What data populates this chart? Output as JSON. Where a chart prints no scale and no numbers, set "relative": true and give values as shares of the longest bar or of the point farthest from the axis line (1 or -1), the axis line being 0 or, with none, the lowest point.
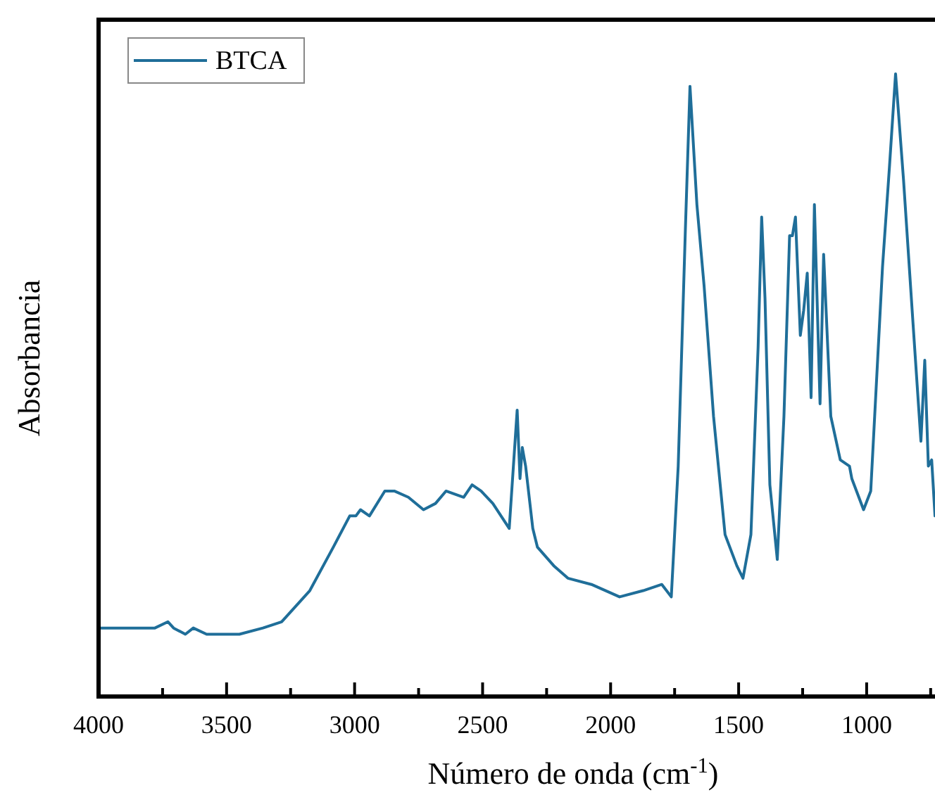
{
  "chart_data": {
    "type": "line",
    "xlabel": "Número de onda (cm$^{-1}$)",
    "ylabel": "Absorbancia",
    "relative": true,
    "legend": "top left",
    "grid": false,
    "marker": "none",
    "line_style": "solid",
    "xlim": [
      4000,
      733
    ],
    "xticks": [
      4000,
      {
        "value": 3750,
        "label": null
      },
      3500,
      {
        "value": 3250,
        "label": null
      },
      3000,
      {
        "value": 2750,
        "label": null
      },
      2500,
      {
        "value": 2250,
        "label": null
      },
      2000,
      {
        "value": 1750,
        "label": null
      },
      1500,
      {
        "value": 1250,
        "label": null
      },
      1000,
      {
        "value": 750,
        "label": null
      }
    ],
    "series": [
      {
        "name": "BTCA",
        "color": "#1f6e99",
        "x": [
          3995,
          3780,
          3729,
          3707,
          3661,
          3630,
          3578,
          3450,
          3358,
          3285,
          3175,
          3083,
          3019,
          2995,
          2977,
          2942,
          2882,
          2845,
          2790,
          2731,
          2684,
          2643,
          2574,
          2541,
          2506,
          2460,
          2396,
          2365,
          2354,
          2345,
          2332,
          2304,
          2286,
          2222,
          2167,
          2075,
          1965,
          1873,
          1800,
          1763,
          1736,
          1708,
          1690,
          1663,
          1635,
          1598,
          1553,
          1507,
          1483,
          1452,
          1424,
          1410,
          1397,
          1378,
          1349,
          1323,
          1301,
          1290,
          1278,
          1259,
          1246,
          1232,
          1217,
          1204,
          1182,
          1168,
          1140,
          1103,
          1067,
          1058,
          1012,
          984,
          938,
          911,
          887,
          856,
          819,
          788,
          773,
          759,
          746,
          733
        ],
        "values": [
          0.11,
          0.11,
          0.12,
          0.11,
          0.1,
          0.11,
          0.1,
          0.1,
          0.11,
          0.12,
          0.17,
          0.24,
          0.29,
          0.29,
          0.3,
          0.29,
          0.33,
          0.33,
          0.32,
          0.3,
          0.31,
          0.33,
          0.32,
          0.34,
          0.33,
          0.31,
          0.27,
          0.46,
          0.35,
          0.4,
          0.37,
          0.27,
          0.24,
          0.21,
          0.19,
          0.18,
          0.16,
          0.17,
          0.18,
          0.16,
          0.37,
          0.75,
          0.98,
          0.79,
          0.66,
          0.45,
          0.26,
          0.21,
          0.19,
          0.26,
          0.56,
          0.77,
          0.64,
          0.34,
          0.22,
          0.45,
          0.74,
          0.74,
          0.77,
          0.58,
          0.62,
          0.68,
          0.48,
          0.79,
          0.47,
          0.71,
          0.45,
          0.38,
          0.37,
          0.35,
          0.3,
          0.33,
          0.69,
          0.85,
          1.0,
          0.83,
          0.6,
          0.41,
          0.54,
          0.37,
          0.38,
          0.29
        ]
      }
    ]
  }
}
